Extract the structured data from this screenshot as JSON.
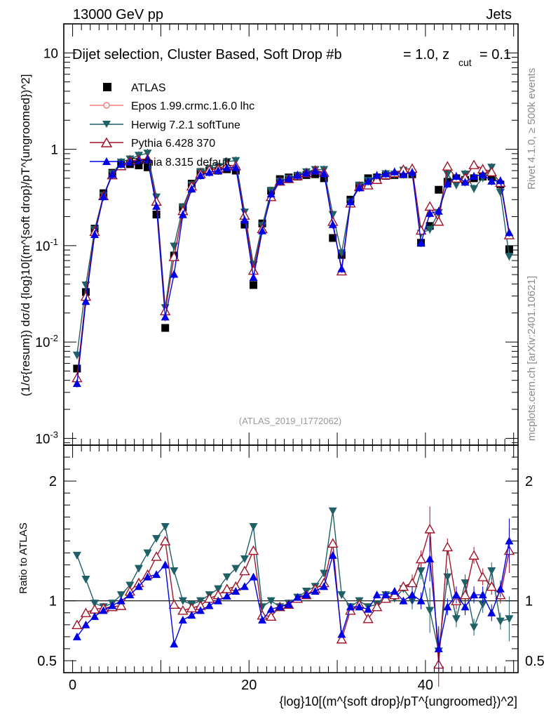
{
  "chart_data": {
    "type": "line",
    "title_left": "13000 GeV pp",
    "title_right": "Jets",
    "subtitle": "Dijet selection, Cluster Based, Soft Drop #b",
    "subtitle_beta": "= 1.0, z",
    "subtitle_zcut": "cut",
    "subtitle_zval": "= 0.1",
    "ylabel_top": "(1/σ{resum}) dσ/d {log}10[(m^{soft drop}/pT^{ungroomed})^2]",
    "ylabel_bottom": "Ratio to ATLAS",
    "xlabel": "{log}10[(m^{soft drop}/pT^{ungroomed})^2]",
    "analysis_id": "(ATLAS_2019_I1772062)",
    "side_text_top": "Rivet 4.1.0, ≥ 500k events",
    "side_text_bottom": "mcplots.cern.ch [arXiv:2401.10621]",
    "xlim": [
      -1,
      50.5
    ],
    "ylim_top": [
      0.00085,
      20
    ],
    "ylim_bottom": [
      0.4,
      2.3
    ],
    "x_ticks": [
      0,
      20,
      40
    ],
    "y_ticks_top": [
      "10^-3",
      "10^-2",
      "10^-1",
      "1",
      "10"
    ],
    "y_ticks_bottom": [
      0.5,
      1,
      2
    ],
    "legend": [
      {
        "name": "ATLAS",
        "color": "#000000",
        "marker": "square"
      },
      {
        "name": "Epos 1.99.crmc.1.6.0 lhc",
        "color": "#f08080",
        "marker": "open-circle"
      },
      {
        "name": "Herwig 7.2.1 softTune",
        "color": "#1f5f66",
        "marker": "triangle-down"
      },
      {
        "name": "Pythia 6.428 370",
        "color": "#a0142a",
        "marker": "open-triangle"
      },
      {
        "name": "Pythia 8.315 default",
        "color": "#0000e6",
        "marker": "triangle-up"
      }
    ],
    "x": [
      0.5,
      1.5,
      2.5,
      3.5,
      4.5,
      5.5,
      6.5,
      7.5,
      8.5,
      9.5,
      10.5,
      11.5,
      12.5,
      13.5,
      14.5,
      15.5,
      16.5,
      17.5,
      18.5,
      19.5,
      20.5,
      21.5,
      22.5,
      23.5,
      24.5,
      25.5,
      26.5,
      27.5,
      28.5,
      29.5,
      30.5,
      31.5,
      32.5,
      33.5,
      34.5,
      35.5,
      36.5,
      37.5,
      38.5,
      39.5,
      40.5,
      41.5,
      42.5,
      43.5,
      44.5,
      45.5,
      46.5,
      47.5,
      48.5,
      49.5
    ],
    "atlas": [
      0.0053,
      0.033,
      0.15,
      0.35,
      0.57,
      0.7,
      0.7,
      0.68,
      0.65,
      0.21,
      0.014,
      0.079,
      0.25,
      0.44,
      0.58,
      0.6,
      0.6,
      0.62,
      0.6,
      0.165,
      0.039,
      0.17,
      0.37,
      0.49,
      0.51,
      0.52,
      0.54,
      0.55,
      0.5,
      0.12,
      0.08,
      0.3,
      0.42,
      0.5,
      0.51,
      0.53,
      0.54,
      0.55,
      0.55,
      0.107,
      0.16,
      0.38,
      0.46,
      0.5,
      0.48,
      0.5,
      0.52,
      0.52,
      0.43,
      0.091
    ],
    "series": [
      {
        "name": "Herwig 7.2.1 softTune",
        "ratio": [
          1.38,
          1.18,
          0.98,
          0.95,
          0.98,
          1.05,
          1.13,
          1.27,
          1.4,
          1.52,
          1.62,
          1.25,
          1.0,
          0.97,
          1.0,
          1.05,
          1.1,
          1.2,
          1.27,
          1.35,
          1.62,
          0.95,
          1.0,
          0.95,
          0.98,
          1.03,
          1.08,
          1.12,
          1.23,
          1.75,
          1.05,
          0.95,
          1.0,
          0.95,
          0.97,
          1.05,
          1.02,
          1.1,
          1.0,
          1.25,
          0.92,
          0.58,
          1.2,
          0.85,
          1.15,
          0.78,
          0.97,
          1.25,
          0.83,
          0.85
        ]
      },
      {
        "name": "Pythia 6.428 370",
        "ratio": [
          0.8,
          0.9,
          0.93,
          0.94,
          0.95,
          0.96,
          1.08,
          1.15,
          1.22,
          1.37,
          1.5,
          0.97,
          0.92,
          0.94,
          0.96,
          1.02,
          1.05,
          1.1,
          1.12,
          1.25,
          1.42,
          0.88,
          0.87,
          0.95,
          0.97,
          1.02,
          1.05,
          1.1,
          1.15,
          1.48,
          0.68,
          0.92,
          0.97,
          0.85,
          0.95,
          1.02,
          1.05,
          1.12,
          1.15,
          1.35,
          1.6,
          0.47,
          1.45,
          1.0,
          1.05,
          1.38,
          1.2,
          1.12,
          1.05,
          1.42
        ]
      },
      {
        "name": "Pythia 8.315 default",
        "ratio": [
          0.7,
          0.8,
          0.87,
          0.92,
          0.96,
          1.0,
          1.05,
          1.12,
          1.2,
          1.22,
          1.3,
          0.64,
          0.84,
          0.88,
          0.92,
          0.96,
          1.0,
          1.04,
          1.08,
          1.12,
          1.2,
          0.84,
          0.93,
          0.95,
          0.97,
          1.03,
          1.05,
          1.08,
          1.12,
          1.38,
          0.72,
          0.95,
          0.95,
          0.93,
          1.05,
          1.05,
          1.08,
          1.0,
          1.05,
          1.0,
          1.35,
          0.6,
          0.95,
          1.05,
          0.95,
          1.05,
          1.05,
          0.9,
          1.1,
          1.5
        ]
      }
    ]
  }
}
